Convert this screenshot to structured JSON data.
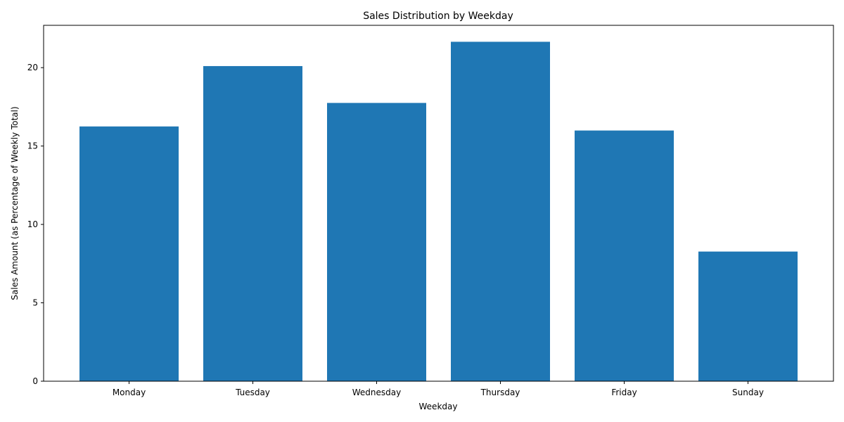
{
  "chart_data": {
    "type": "bar",
    "title": "Sales Distribution by Weekday",
    "xlabel": "Weekday",
    "ylabel": "Sales Amount (as Percentage of Weekly Total)",
    "categories": [
      "Monday",
      "Tuesday",
      "Wednesday",
      "Thursday",
      "Friday",
      "Sunday"
    ],
    "values": [
      16.25,
      20.1,
      17.75,
      21.65,
      15.99,
      8.27
    ],
    "ylim": [
      0,
      22.7
    ],
    "yticks": [
      0,
      5,
      10,
      15,
      20
    ],
    "bar_color": "#1f77b4",
    "grid": false,
    "legend": "none"
  }
}
